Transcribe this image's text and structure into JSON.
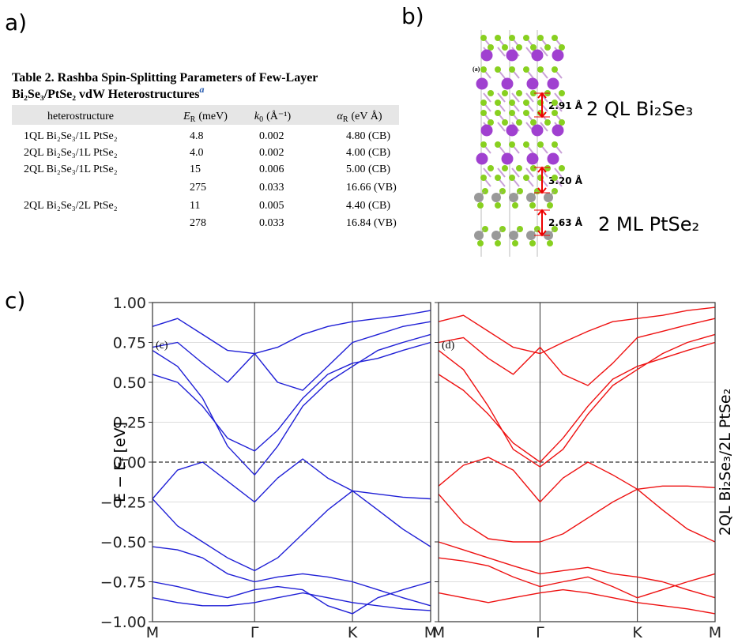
{
  "panels": {
    "a": "a)",
    "b": "b)",
    "c": "c)"
  },
  "table": {
    "title": [
      "Table 2. Rashba Spin-Splitting Parameters of Few-Layer",
      "Bi₂Se₃/PtSe₂ vdW Heterostructures"
    ],
    "title_note": "a",
    "headers": [
      {
        "text": "heterostructure"
      },
      {
        "symbol": "E",
        "sub": "R",
        "unit": "(meV)"
      },
      {
        "symbol": "k",
        "sub": "0",
        "unit": "(Å⁻¹)"
      },
      {
        "symbol": "α",
        "sub": "R",
        "unit": "(eV Å)"
      }
    ],
    "rows": [
      [
        "1QL Bi₂Se₃/1L PtSe₂",
        "4.8",
        "0.002",
        "4.80 (CB)"
      ],
      [
        "2QL Bi₂Se₃/1L PtSe₂",
        "4.0",
        "0.002",
        "4.00 (CB)"
      ],
      [
        "2QL Bi₂Se₃/1L PtSe₂",
        "15",
        "0.006",
        "5.00 (CB)"
      ],
      [
        null,
        "275",
        "0.033",
        "16.66 (VB)"
      ],
      [
        "2QL Bi₂Se₃/2L PtSe₂",
        "11",
        "0.005",
        "4.40 (CB)"
      ],
      [
        null,
        "278",
        "0.033",
        "16.84 (VB)"
      ]
    ]
  },
  "structure": {
    "inset_label": "(a)",
    "distances": [
      "2.91 Å",
      "3.20 Å",
      "2.63 Å"
    ],
    "labels": [
      "2 QL Bi₂Se₃",
      "2 ML PtSe₂"
    ]
  },
  "band_side_label": "2QL Bi₂Se₃/2L PtSe₂",
  "ylabel": {
    "main": "E − E",
    "sub": "f",
    "unit": "[eV]"
  },
  "chart_data": [
    {
      "type": "line",
      "panel_label": "(c)",
      "color": "#1f1fd6",
      "xlim": [
        0,
        1
      ],
      "ylim": [
        -1,
        1
      ],
      "xticks": [
        {
          "value": 0,
          "label": "M"
        },
        {
          "value": 0.367,
          "label": "Γ"
        },
        {
          "value": 0.719,
          "label": "K"
        },
        {
          "value": 1,
          "label": "M"
        }
      ],
      "yticks": [
        {
          "value": -1,
          "label": "−1.00"
        },
        {
          "value": -0.75,
          "label": "−0.75"
        },
        {
          "value": -0.5,
          "label": "−0.50"
        },
        {
          "value": -0.25,
          "label": "−0.25"
        },
        {
          "value": 0,
          "label": "0.00"
        },
        {
          "value": 0.25,
          "label": "0.25"
        },
        {
          "value": 0.5,
          "label": "0.50"
        },
        {
          "value": 0.75,
          "label": "0.75"
        },
        {
          "value": 1,
          "label": "1.00"
        }
      ],
      "grid": true,
      "x": [
        0,
        0.09,
        0.18,
        0.27,
        0.367,
        0.45,
        0.54,
        0.63,
        0.719,
        0.81,
        0.9,
        1
      ],
      "series": [
        {
          "values": [
            0.55,
            0.5,
            0.35,
            0.15,
            0.07,
            0.2,
            0.4,
            0.55,
            0.62,
            0.65,
            0.7,
            0.75
          ]
        },
        {
          "values": [
            0.7,
            0.6,
            0.4,
            0.1,
            -0.08,
            0.1,
            0.35,
            0.5,
            0.6,
            0.7,
            0.75,
            0.8
          ]
        },
        {
          "values": [
            0.85,
            0.9,
            0.8,
            0.7,
            0.68,
            0.72,
            0.8,
            0.85,
            0.88,
            0.9,
            0.92,
            0.95
          ]
        },
        {
          "values": [
            0.72,
            0.75,
            0.62,
            0.5,
            0.68,
            0.5,
            0.45,
            0.6,
            0.75,
            0.8,
            0.85,
            0.88
          ]
        },
        {
          "values": [
            -0.23,
            -0.05,
            0.0,
            -0.12,
            -0.25,
            -0.1,
            0.02,
            -0.1,
            -0.18,
            -0.2,
            -0.22,
            -0.23
          ]
        },
        {
          "values": [
            -0.23,
            -0.4,
            -0.5,
            -0.6,
            -0.68,
            -0.6,
            -0.45,
            -0.3,
            -0.18,
            -0.3,
            -0.42,
            -0.53
          ]
        },
        {
          "values": [
            -0.53,
            -0.55,
            -0.6,
            -0.7,
            -0.75,
            -0.72,
            -0.7,
            -0.72,
            -0.75,
            -0.8,
            -0.85,
            -0.9
          ]
        },
        {
          "values": [
            -0.85,
            -0.88,
            -0.9,
            -0.9,
            -0.88,
            -0.85,
            -0.82,
            -0.85,
            -0.88,
            -0.9,
            -0.92,
            -0.93
          ]
        },
        {
          "values": [
            -0.75,
            -0.78,
            -0.82,
            -0.85,
            -0.8,
            -0.78,
            -0.8,
            -0.9,
            -0.95,
            -0.85,
            -0.8,
            -0.75
          ]
        }
      ]
    },
    {
      "type": "line",
      "panel_label": "(d)",
      "color": "#ee1111",
      "xlim": [
        0,
        1
      ],
      "ylim": [
        -1,
        1
      ],
      "xticks": [
        {
          "value": 0,
          "label": "M"
        },
        {
          "value": 0.367,
          "label": "Γ"
        },
        {
          "value": 0.719,
          "label": "K"
        },
        {
          "value": 1,
          "label": "M"
        }
      ],
      "yticks": [
        -1,
        -0.75,
        -0.5,
        -0.25,
        0,
        0.25,
        0.5,
        0.75,
        1
      ],
      "grid": true,
      "x": [
        0,
        0.09,
        0.18,
        0.27,
        0.367,
        0.45,
        0.54,
        0.63,
        0.719,
        0.81,
        0.9,
        1
      ],
      "series": [
        {
          "values": [
            0.55,
            0.45,
            0.3,
            0.12,
            0.0,
            0.15,
            0.35,
            0.52,
            0.6,
            0.65,
            0.7,
            0.75
          ]
        },
        {
          "values": [
            0.7,
            0.58,
            0.35,
            0.08,
            -0.03,
            0.08,
            0.3,
            0.48,
            0.58,
            0.68,
            0.75,
            0.8
          ]
        },
        {
          "values": [
            0.88,
            0.92,
            0.82,
            0.72,
            0.68,
            0.75,
            0.82,
            0.88,
            0.9,
            0.92,
            0.95,
            0.97
          ]
        },
        {
          "values": [
            0.75,
            0.78,
            0.65,
            0.55,
            0.72,
            0.55,
            0.48,
            0.62,
            0.78,
            0.82,
            0.86,
            0.9
          ]
        },
        {
          "values": [
            -0.15,
            -0.02,
            0.03,
            -0.05,
            -0.25,
            -0.1,
            0.0,
            -0.08,
            -0.17,
            -0.15,
            -0.15,
            -0.16
          ]
        },
        {
          "values": [
            -0.2,
            -0.38,
            -0.48,
            -0.5,
            -0.5,
            -0.45,
            -0.35,
            -0.25,
            -0.17,
            -0.3,
            -0.42,
            -0.5
          ]
        },
        {
          "values": [
            -0.5,
            -0.55,
            -0.6,
            -0.65,
            -0.7,
            -0.68,
            -0.66,
            -0.7,
            -0.72,
            -0.75,
            -0.8,
            -0.85
          ]
        },
        {
          "values": [
            -0.82,
            -0.85,
            -0.88,
            -0.85,
            -0.82,
            -0.8,
            -0.82,
            -0.85,
            -0.88,
            -0.9,
            -0.92,
            -0.95
          ]
        },
        {
          "values": [
            -0.6,
            -0.62,
            -0.65,
            -0.72,
            -0.78,
            -0.75,
            -0.72,
            -0.78,
            -0.85,
            -0.8,
            -0.75,
            -0.7
          ]
        }
      ]
    }
  ]
}
